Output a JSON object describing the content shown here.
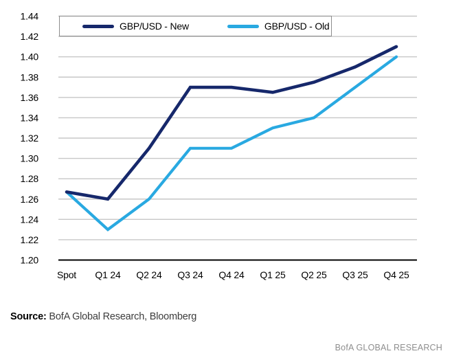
{
  "chart_data": {
    "type": "line",
    "categories": [
      "Spot",
      "Q1 24",
      "Q2 24",
      "Q3 24",
      "Q4 24",
      "Q1 25",
      "Q2 25",
      "Q3 25",
      "Q4 25"
    ],
    "series": [
      {
        "name": "GBP/USD - New",
        "color": "#16286B",
        "values": [
          1.267,
          1.26,
          1.31,
          1.37,
          1.37,
          1.365,
          1.375,
          1.39,
          1.41
        ]
      },
      {
        "name": "GBP/USD - Old",
        "color": "#29A9E1",
        "values": [
          1.267,
          1.23,
          1.26,
          1.31,
          1.31,
          1.33,
          1.34,
          1.37,
          1.4
        ]
      }
    ],
    "ylim": [
      1.2,
      1.44
    ],
    "ytick_step": 0.02,
    "yticks": [
      "1.44",
      "1.42",
      "1.40",
      "1.38",
      "1.36",
      "1.34",
      "1.32",
      "1.30",
      "1.28",
      "1.26",
      "1.24",
      "1.22",
      "1.20"
    ],
    "grid": "horizontal",
    "legend_position": "top-inside-box"
  },
  "colors": {
    "grid": "#C7C7C7",
    "axis": "#000000",
    "legend_border": "#8C8C8C",
    "brand_text": "#8E8E8E"
  },
  "footer": {
    "source_label": "Source:",
    "source_text": " BofA Global Research, Bloomberg",
    "brand": "BofA GLOBAL RESEARCH"
  }
}
